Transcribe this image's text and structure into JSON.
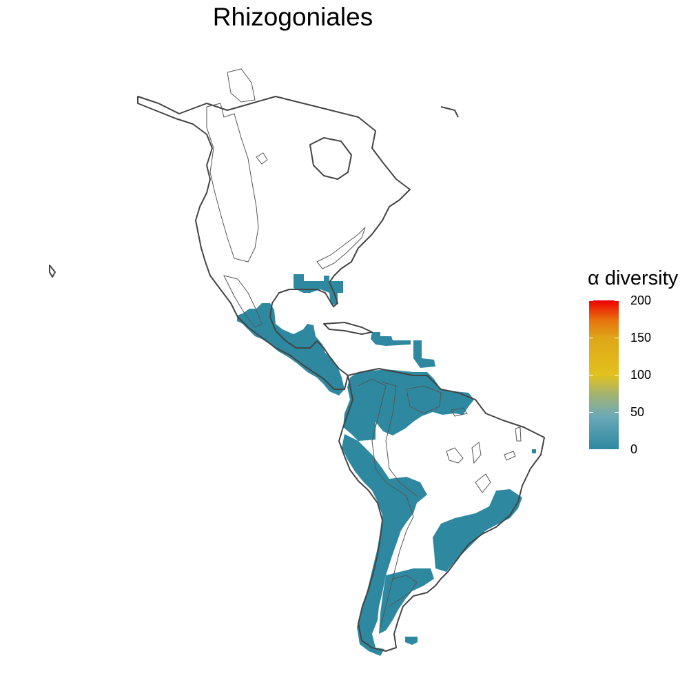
{
  "title": "Rhizogoniales",
  "legend": {
    "title": "α diversity",
    "ticks": [
      {
        "value": 200,
        "label": "200"
      },
      {
        "value": 150,
        "label": "150"
      },
      {
        "value": 100,
        "label": "100"
      },
      {
        "value": 50,
        "label": "50"
      },
      {
        "value": 0,
        "label": "0"
      }
    ],
    "range": [
      0,
      200
    ],
    "low_color": "#2e89a0",
    "mid_color": "#e3c11e",
    "high_color": "#ee0000"
  },
  "colors": {
    "occupied_cell": "#2e89a0",
    "land_outline": "#444444",
    "ecoregion_outline": "#555555"
  },
  "map": {
    "region": "Americas",
    "occupied_value": 3
  }
}
